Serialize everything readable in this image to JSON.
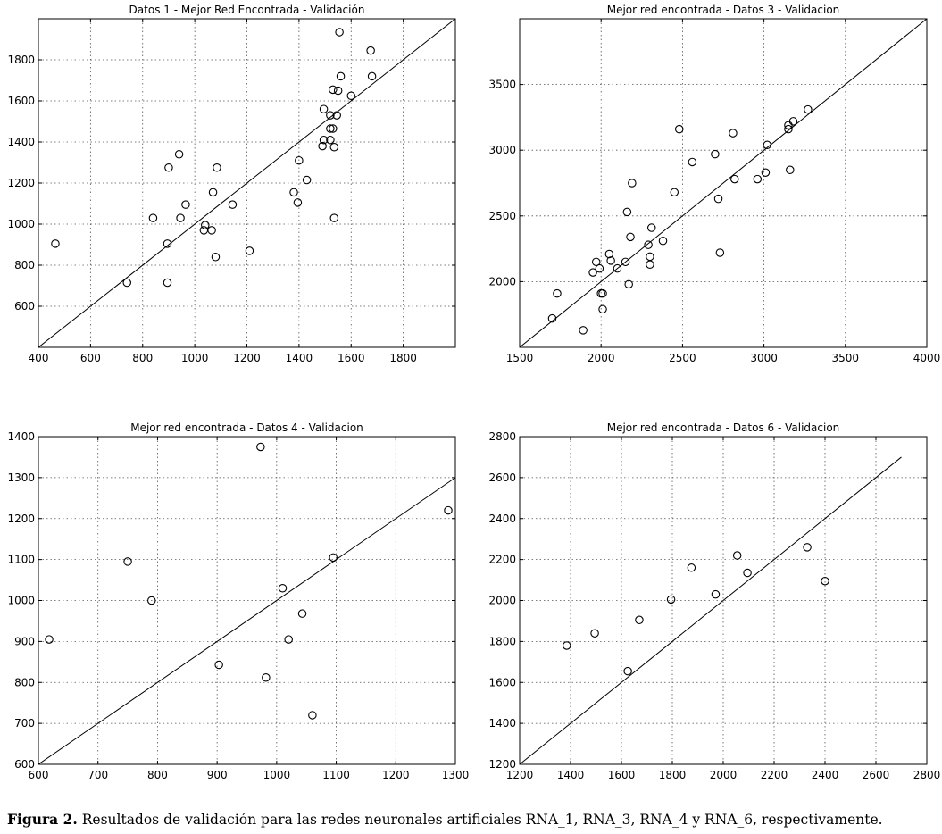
{
  "figure": {
    "caption_label": "Figura 2.",
    "caption_text": " Resultados de validación para las redes neuronales artificiales RNA_1, RNA_3, RNA_4 y RNA_6, respectivamente."
  },
  "chart_data": [
    {
      "type": "scatter",
      "title": "Datos 1 - Mejor Red Encontrada - Validación",
      "xlim": [
        400,
        2000
      ],
      "ylim": [
        400,
        2000
      ],
      "xticks": [
        400,
        600,
        800,
        1000,
        1200,
        1400,
        1600,
        1800
      ],
      "yticks": [
        600,
        800,
        1000,
        1200,
        1400,
        1600,
        1800
      ],
      "grid": true,
      "line": [
        [
          400,
          400
        ],
        [
          2000,
          2000
        ]
      ],
      "points": [
        [
          465,
          905
        ],
        [
          740,
          715
        ],
        [
          840,
          1030
        ],
        [
          895,
          905
        ],
        [
          900,
          1275
        ],
        [
          895,
          715
        ],
        [
          940,
          1340
        ],
        [
          945,
          1030
        ],
        [
          965,
          1095
        ],
        [
          1040,
          995
        ],
        [
          1035,
          970
        ],
        [
          1065,
          970
        ],
        [
          1070,
          1155
        ],
        [
          1085,
          1275
        ],
        [
          1080,
          840
        ],
        [
          1145,
          1095
        ],
        [
          1210,
          870
        ],
        [
          1380,
          1155
        ],
        [
          1395,
          1105
        ],
        [
          1400,
          1310
        ],
        [
          1430,
          1215
        ],
        [
          1490,
          1380
        ],
        [
          1495,
          1410
        ],
        [
          1495,
          1560
        ],
        [
          1520,
          1530
        ],
        [
          1520,
          1410
        ],
        [
          1520,
          1465
        ],
        [
          1530,
          1465
        ],
        [
          1530,
          1655
        ],
        [
          1535,
          1375
        ],
        [
          1535,
          1030
        ],
        [
          1545,
          1530
        ],
        [
          1550,
          1650
        ],
        [
          1555,
          1935
        ],
        [
          1560,
          1720
        ],
        [
          1600,
          1625
        ],
        [
          1675,
          1845
        ],
        [
          1680,
          1720
        ]
      ]
    },
    {
      "type": "scatter",
      "title": "Mejor red encontrada - Datos 3 - Validacion",
      "xlim": [
        1500,
        4000
      ],
      "ylim": [
        1500,
        4000
      ],
      "xticks": [
        1500,
        2000,
        2500,
        3000,
        3500,
        4000
      ],
      "yticks": [
        2000,
        2500,
        3000,
        3500
      ],
      "grid": true,
      "line": [
        [
          1500,
          1500
        ],
        [
          4000,
          4000
        ]
      ],
      "points": [
        [
          1700,
          1720
        ],
        [
          1730,
          1910
        ],
        [
          1890,
          1630
        ],
        [
          1950,
          2070
        ],
        [
          1970,
          2150
        ],
        [
          1990,
          2100
        ],
        [
          2000,
          1910
        ],
        [
          2010,
          1910
        ],
        [
          2010,
          1790
        ],
        [
          2050,
          2210
        ],
        [
          2060,
          2160
        ],
        [
          2100,
          2100
        ],
        [
          2150,
          2150
        ],
        [
          2160,
          2530
        ],
        [
          2170,
          1980
        ],
        [
          2180,
          2340
        ],
        [
          2190,
          2750
        ],
        [
          2290,
          2280
        ],
        [
          2300,
          2130
        ],
        [
          2300,
          2190
        ],
        [
          2310,
          2410
        ],
        [
          2380,
          2310
        ],
        [
          2450,
          2680
        ],
        [
          2480,
          3160
        ],
        [
          2560,
          2910
        ],
        [
          2700,
          2970
        ],
        [
          2720,
          2630
        ],
        [
          2730,
          2220
        ],
        [
          2810,
          3130
        ],
        [
          2820,
          2780
        ],
        [
          2960,
          2780
        ],
        [
          3010,
          2830
        ],
        [
          3020,
          3040
        ],
        [
          3150,
          3190
        ],
        [
          3150,
          3160
        ],
        [
          3160,
          2850
        ],
        [
          3180,
          3220
        ],
        [
          3270,
          3310
        ]
      ]
    },
    {
      "type": "scatter",
      "title": "Mejor red encontrada - Datos 4 - Validacion",
      "xlim": [
        600,
        1300
      ],
      "ylim": [
        600,
        1400
      ],
      "xticks": [
        600,
        700,
        800,
        900,
        1000,
        1100,
        1200,
        1300
      ],
      "yticks": [
        600,
        700,
        800,
        900,
        1000,
        1100,
        1200,
        1300,
        1400
      ],
      "grid": true,
      "line": [
        [
          600,
          600
        ],
        [
          1300,
          1300
        ]
      ],
      "points": [
        [
          618,
          905
        ],
        [
          750,
          1095
        ],
        [
          790,
          1000
        ],
        [
          903,
          843
        ],
        [
          973,
          1375
        ],
        [
          982,
          812
        ],
        [
          1010,
          1030
        ],
        [
          1020,
          905
        ],
        [
          1043,
          968
        ],
        [
          1060,
          720
        ],
        [
          1095,
          1105
        ],
        [
          1288,
          1220
        ]
      ]
    },
    {
      "type": "scatter",
      "title": "Mejor red encontrada - Datos 6 - Validacion",
      "xlim": [
        1200,
        2800
      ],
      "ylim": [
        1200,
        2800
      ],
      "xticks": [
        1200,
        1400,
        1600,
        1800,
        2000,
        2200,
        2400,
        2600,
        2800
      ],
      "yticks": [
        1200,
        1400,
        1600,
        1800,
        2000,
        2200,
        2400,
        2600,
        2800
      ],
      "grid": true,
      "line": [
        [
          1200,
          1200
        ],
        [
          2700,
          2700
        ]
      ],
      "points": [
        [
          1385,
          1780
        ],
        [
          1495,
          1840
        ],
        [
          1625,
          1655
        ],
        [
          1670,
          1905
        ],
        [
          1795,
          2005
        ],
        [
          1875,
          2160
        ],
        [
          1970,
          2030
        ],
        [
          2055,
          2220
        ],
        [
          2095,
          2135
        ],
        [
          2330,
          2260
        ],
        [
          2400,
          2095
        ]
      ]
    }
  ]
}
